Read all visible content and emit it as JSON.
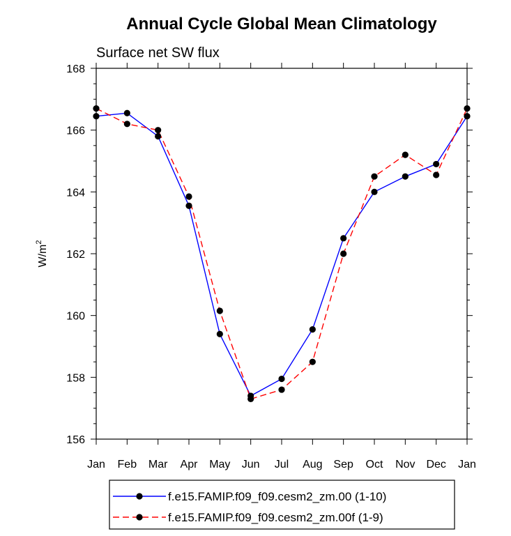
{
  "chart_data": {
    "type": "line",
    "title": "Annual Cycle Global Mean Climatology",
    "subtitle": "Surface net SW flux",
    "xlabel": "",
    "ylabel": "W/m",
    "ylabel_sup": "2",
    "categories": [
      "Jan",
      "Feb",
      "Mar",
      "Apr",
      "May",
      "Jun",
      "Jul",
      "Aug",
      "Sep",
      "Oct",
      "Nov",
      "Dec",
      "Jan"
    ],
    "ylim": [
      156,
      168
    ],
    "yticks": [
      156,
      158,
      160,
      162,
      164,
      166,
      168
    ],
    "ytick_labels": [
      "156",
      "158",
      "160",
      "162",
      "164",
      "166",
      "168"
    ],
    "grid": false,
    "legend_position": "bottom",
    "series": [
      {
        "name": "f.e15.FAMIP.f09_f09.cesm2_zm.00 (1-10)",
        "color": "#0000ff",
        "dash": "solid",
        "values": [
          166.45,
          166.55,
          165.8,
          163.55,
          159.4,
          157.4,
          157.95,
          159.55,
          162.5,
          164.0,
          164.5,
          164.9,
          166.45
        ]
      },
      {
        "name": "f.e15.FAMIP.f09_f09.cesm2_zm.00f (1-9)",
        "color": "#ff0000",
        "dash": "dashed",
        "values": [
          166.7,
          166.2,
          166.0,
          163.85,
          160.15,
          157.3,
          157.6,
          158.5,
          162.0,
          164.5,
          165.2,
          164.55,
          166.7
        ]
      }
    ]
  }
}
